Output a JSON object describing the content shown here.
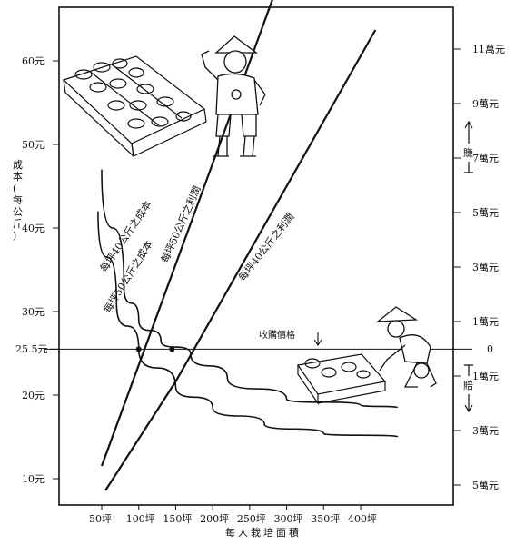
{
  "chart_data": {
    "type": "line",
    "xlabel": "每人栽培面積",
    "ylabel_left": "成本(每公斤)",
    "ylabel_right_top": "賺",
    "ylabel_right_bottom": "賠",
    "reference_line": {
      "label": "收購價格",
      "value_left": 25.5,
      "value_label": "25.5元",
      "right_label": "0"
    },
    "x_ticks": [
      {
        "value": 50,
        "label": "50坪"
      },
      {
        "value": 100,
        "label": "100坪"
      },
      {
        "value": 150,
        "label": "150坪"
      },
      {
        "value": 200,
        "label": "200坪"
      },
      {
        "value": 250,
        "label": "250坪"
      },
      {
        "value": 300,
        "label": "300坪"
      },
      {
        "value": 350,
        "label": "350坪"
      },
      {
        "value": 400,
        "label": "400坪"
      }
    ],
    "left_ticks": [
      {
        "value": 10,
        "label": "10元"
      },
      {
        "value": 20,
        "label": "20元"
      },
      {
        "value": 30,
        "label": "30元"
      },
      {
        "value": 40,
        "label": "40元"
      },
      {
        "value": 50,
        "label": "50元"
      },
      {
        "value": 60,
        "label": "60元"
      }
    ],
    "right_ticks": [
      {
        "value": 11,
        "label": "11萬元"
      },
      {
        "value": 9,
        "label": "9萬元"
      },
      {
        "value": 7,
        "label": "7萬元"
      },
      {
        "value": 5,
        "label": "5萬元"
      },
      {
        "value": 3,
        "label": "3萬元"
      },
      {
        "value": 1,
        "label": "1萬元"
      },
      {
        "value": -1,
        "label": "1萬元"
      },
      {
        "value": -3,
        "label": "3萬元"
      },
      {
        "value": -5,
        "label": "5萬元"
      }
    ],
    "series": [
      {
        "name": "每坪50公斤之利潤",
        "axis": "right",
        "kind": "profit-line",
        "points": [
          [
            50,
            -4.3
          ],
          [
            200,
            6.8
          ],
          [
            290,
            13.5
          ]
        ]
      },
      {
        "name": "每坪40公斤之利潤",
        "axis": "right",
        "kind": "profit-line",
        "points": [
          [
            55,
            -5.2
          ],
          [
            150,
            -1.2
          ],
          [
            420,
            11.7
          ]
        ]
      },
      {
        "name": "每坪40公斤之成本",
        "axis": "left",
        "kind": "cost-curve",
        "points": [
          [
            50,
            47
          ],
          [
            80,
            33
          ],
          [
            100,
            29
          ],
          [
            130,
            26.5
          ],
          [
            170,
            25
          ],
          [
            220,
            22
          ],
          [
            300,
            19.5
          ],
          [
            400,
            18.8
          ],
          [
            450,
            18.5
          ]
        ]
      },
      {
        "name": "每坪50公斤之成本",
        "axis": "left",
        "kind": "cost-curve",
        "points": [
          [
            45,
            42
          ],
          [
            70,
            31
          ],
          [
            100,
            25.5
          ],
          [
            150,
            21
          ],
          [
            200,
            18.5
          ],
          [
            270,
            16.5
          ],
          [
            350,
            15.4
          ],
          [
            450,
            15
          ]
        ]
      }
    ],
    "annotations": [
      {
        "text": "收購價格",
        "position": "center-right"
      },
      {
        "text": "賺",
        "position": "right-upper"
      },
      {
        "text": "賠",
        "position": "right-lower"
      }
    ],
    "illustrations": [
      {
        "name": "farmer-flexing",
        "position": "top-center"
      },
      {
        "name": "mushroom-crate-top",
        "position": "top-left"
      },
      {
        "name": "farmer-crouching",
        "position": "bottom-right"
      },
      {
        "name": "mushroom-crate-bottom",
        "position": "bottom-right"
      }
    ],
    "grid": false,
    "legend": "none"
  }
}
